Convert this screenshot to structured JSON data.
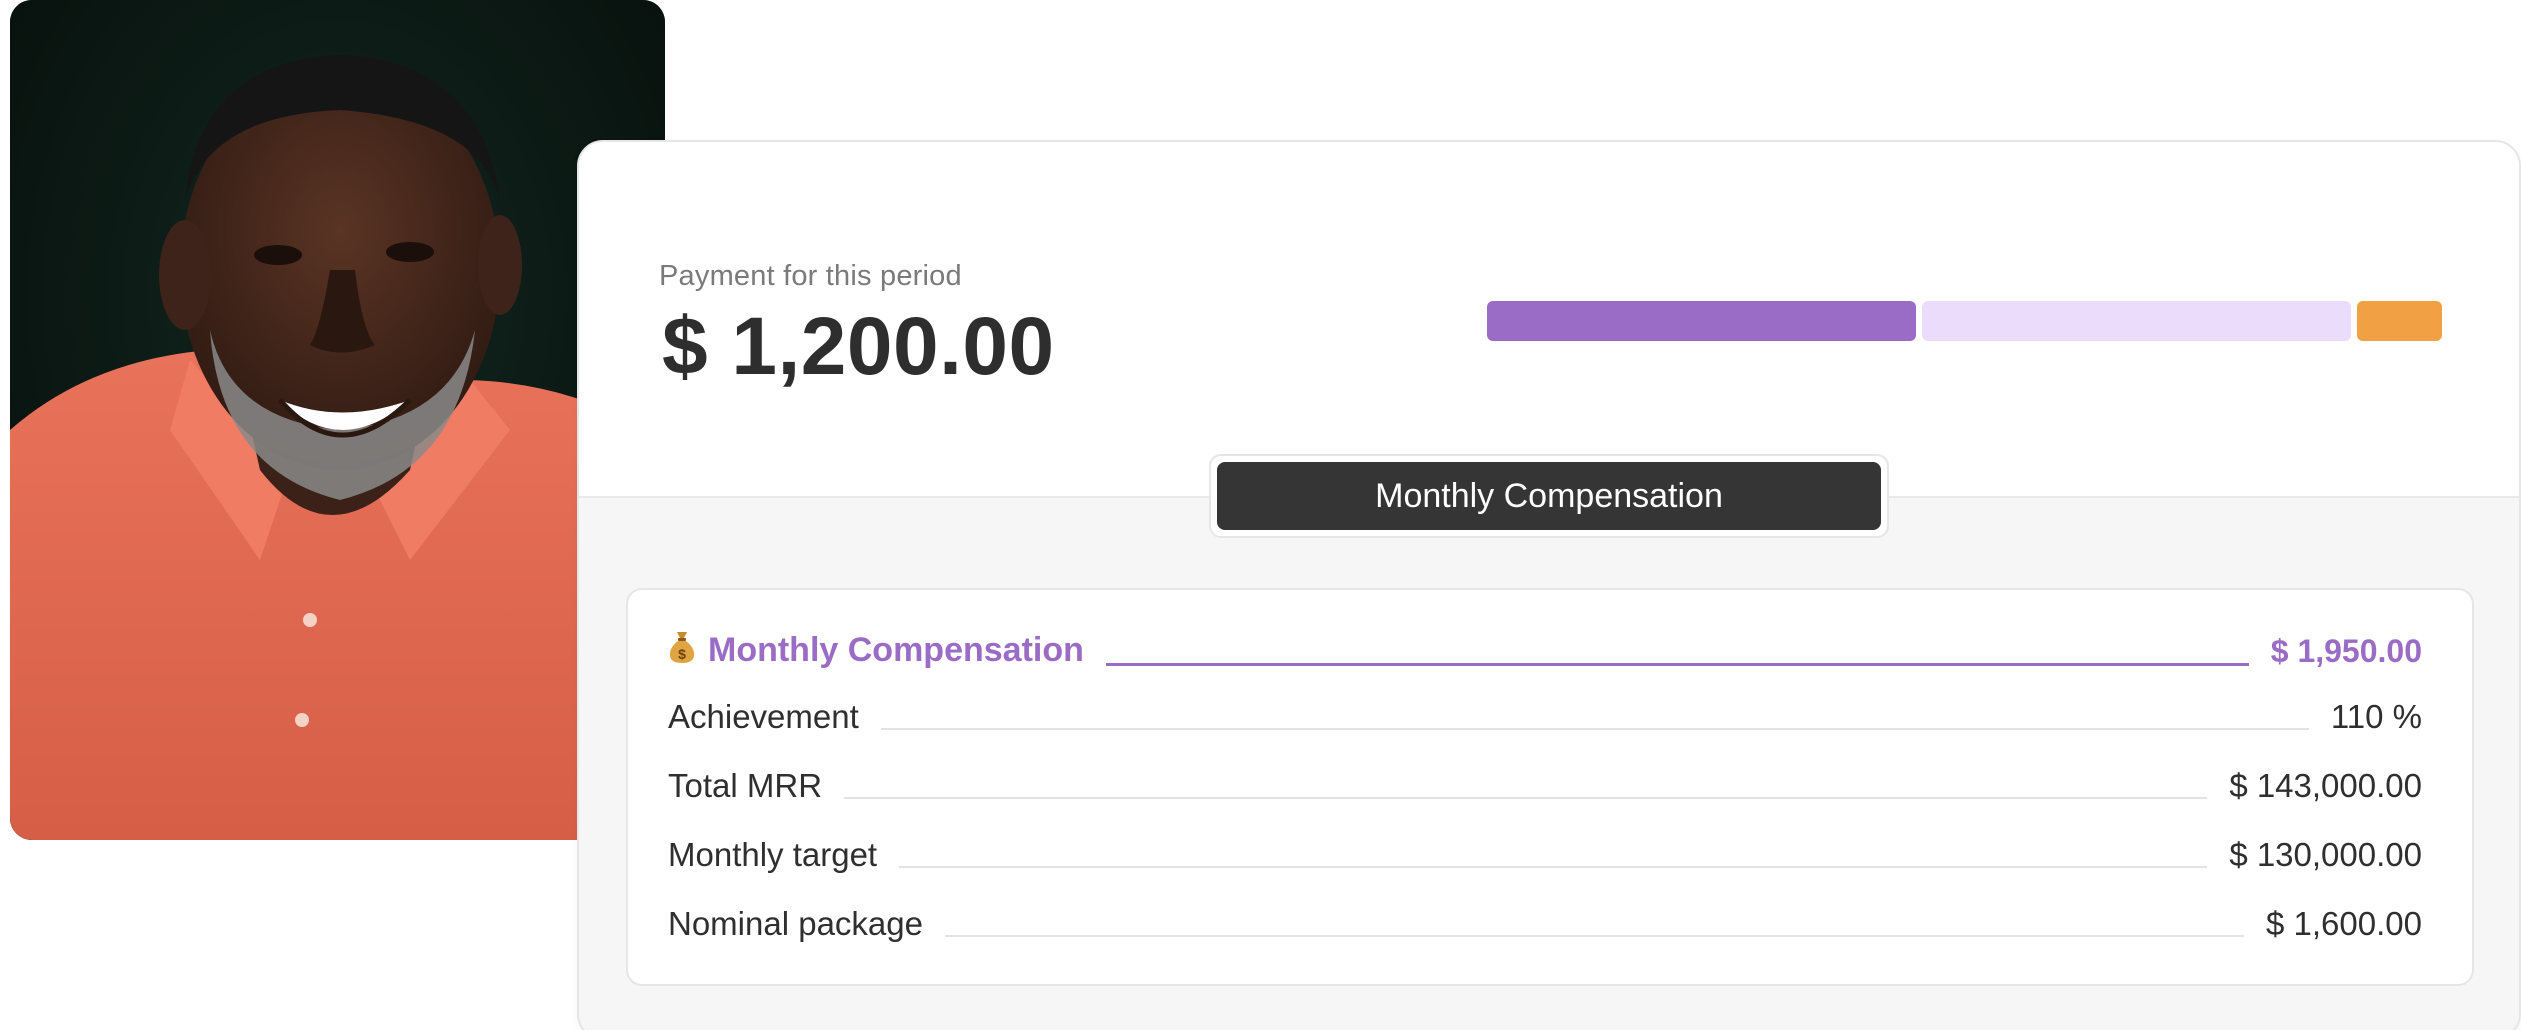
{
  "colors": {
    "accent_purple": "#9a6cc6",
    "light_purple": "#ecdcfb",
    "orange": "#f1a143",
    "dark_tab": "#353535"
  },
  "payment": {
    "label": "Payment for this period",
    "amount": "$ 1,200.00"
  },
  "progress_bar": {
    "segments": [
      {
        "name": "paid",
        "fraction": 0.455,
        "color": "#9a6cc6"
      },
      {
        "name": "remaining",
        "fraction": 0.455,
        "color": "#ecdcfb"
      },
      {
        "name": "bonus",
        "fraction": 0.09,
        "color": "#f1a143"
      }
    ]
  },
  "tab": {
    "label": "Monthly Compensation"
  },
  "compensation": {
    "icon": "money-bag-icon",
    "title": "Monthly Compensation",
    "total": "$ 1,950.00",
    "rows": [
      {
        "label": "Achievement",
        "value": "110 %"
      },
      {
        "label": "Total MRR",
        "value": "$ 143,000.00"
      },
      {
        "label": "Monthly target",
        "value": "$ 130,000.00"
      },
      {
        "label": "Nominal package",
        "value": "$ 1,600.00"
      }
    ]
  }
}
